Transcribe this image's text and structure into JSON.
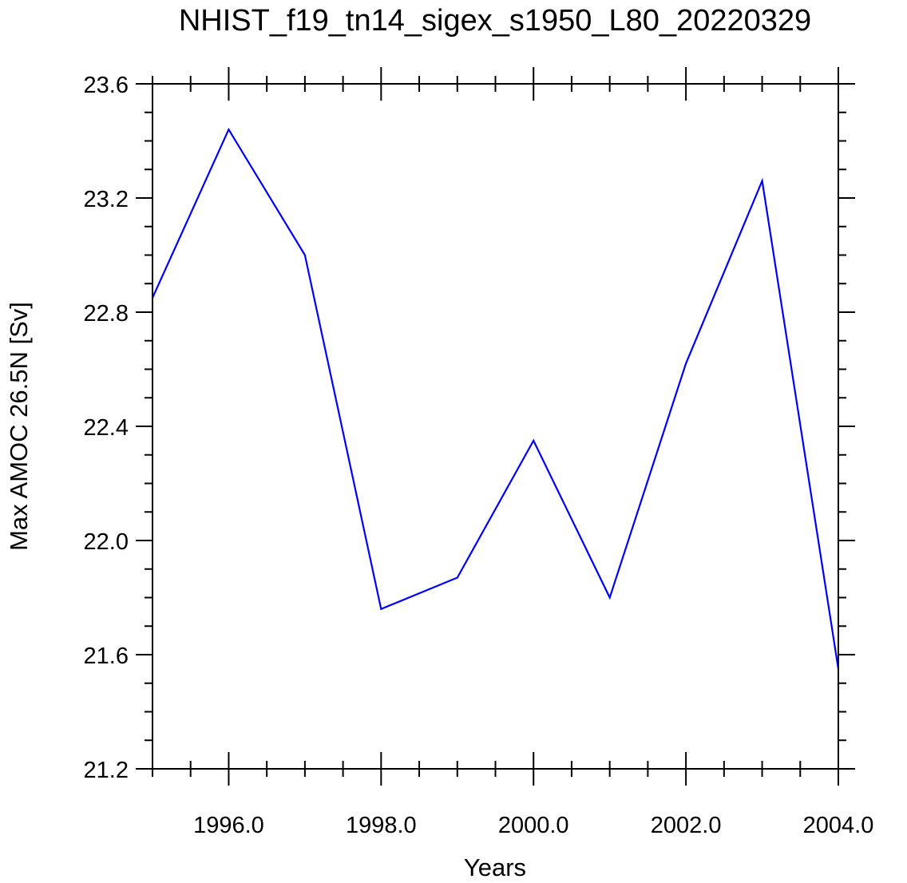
{
  "chart_data": {
    "type": "line",
    "title": "NHIST_f19_tn14_sigex_s1950_L80_20220329",
    "xlabel": "Years",
    "ylabel": "Max AMOC 26.5N [Sv]",
    "xlim": [
      1995.0,
      2004.0
    ],
    "ylim": [
      21.2,
      23.6
    ],
    "x_ticks": [
      1996.0,
      1998.0,
      2000.0,
      2002.0,
      2004.0
    ],
    "x_tick_labels": [
      "1996.0",
      "1998.0",
      "2000.0",
      "2002.0",
      "2004.0"
    ],
    "y_ticks": [
      21.2,
      21.6,
      22.0,
      22.4,
      22.8,
      23.2,
      23.6
    ],
    "y_tick_labels": [
      "21.2",
      "21.6",
      "22.0",
      "22.4",
      "22.8",
      "23.2",
      "23.6"
    ],
    "grid": false,
    "series": [
      {
        "color": "#0000ff",
        "x": [
          1995,
          1996,
          1997,
          1998,
          1999,
          2000,
          2001,
          2002,
          2003,
          2004
        ],
        "y": [
          22.85,
          23.44,
          23.0,
          21.76,
          21.87,
          22.35,
          21.8,
          22.62,
          23.26,
          21.55
        ]
      }
    ]
  }
}
